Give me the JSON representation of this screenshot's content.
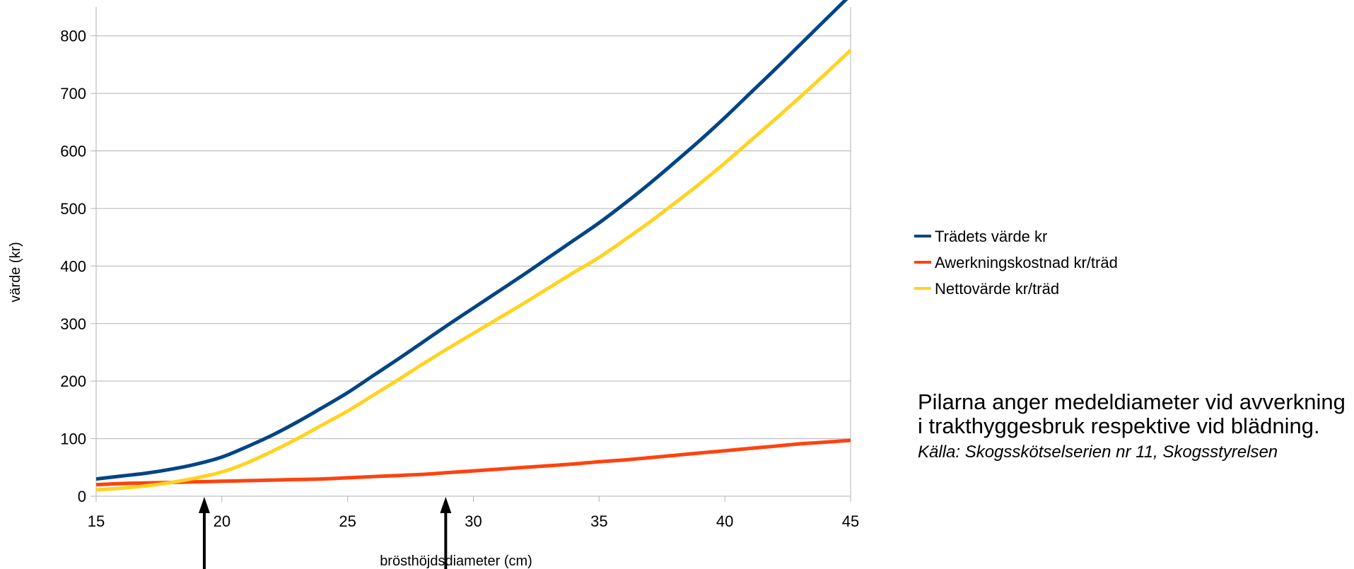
{
  "chart_data": {
    "type": "line",
    "title": "",
    "xlabel": "brösthöjdsdiameter (cm)",
    "ylabel": "värde (kr)",
    "xlim": [
      15,
      45
    ],
    "ylim": [
      0,
      850
    ],
    "x_ticks": [
      "15",
      "20",
      "25",
      "30",
      "35",
      "40",
      "45"
    ],
    "y_ticks": [
      "0",
      "100",
      "200",
      "300",
      "400",
      "500",
      "600",
      "700",
      "800"
    ],
    "grid": "horizontal",
    "legend_position": "right",
    "x": [
      15,
      16,
      17,
      18,
      19,
      20,
      21,
      22,
      23,
      24,
      25,
      26,
      27,
      28,
      29,
      30,
      31,
      32,
      33,
      34,
      35,
      36,
      37,
      38,
      39,
      40,
      41,
      42,
      43,
      44,
      45
    ],
    "series": [
      {
        "name": "Trädets värde kr",
        "color": "#004586",
        "values": [
          30,
          35,
          40,
          47,
          56,
          68,
          86,
          106,
          129,
          154,
          180,
          209,
          238,
          268,
          298,
          327,
          356,
          385,
          415,
          445,
          475,
          508,
          543,
          580,
          618,
          658,
          700,
          742,
          785,
          828,
          871
        ]
      },
      {
        "name": "Awerkningskostnad kr/träd",
        "color": "#ff420e",
        "values": [
          20,
          22,
          23,
          24,
          25,
          26,
          27,
          28,
          29,
          30,
          32,
          34,
          36,
          38,
          41,
          44,
          47,
          50,
          53,
          56,
          60,
          63,
          67,
          71,
          75,
          79,
          83,
          87,
          91,
          94,
          97
        ]
      },
      {
        "name": "Nettovärde kr/träd",
        "color": "#ffd320",
        "values": [
          11,
          14,
          18,
          24,
          32,
          42,
          58,
          78,
          100,
          124,
          148,
          175,
          202,
          230,
          257,
          283,
          309,
          335,
          362,
          389,
          415,
          445,
          476,
          509,
          543,
          579,
          617,
          655,
          694,
          734,
          775
        ]
      }
    ],
    "annotations": [
      {
        "type": "arrow",
        "x": 19.3,
        "meaning": "medeldiameter vid avverkning i trakthyggesbruk"
      },
      {
        "type": "arrow",
        "x": 28.9,
        "meaning": "medeldiameter vid blädning"
      }
    ]
  },
  "note": {
    "text": "Pilarna anger medeldiameter vid avverkning i trakthyggesbruk respektive vid blädning.",
    "source": "Källa: Skogsskötselserien nr 11, Skogsstyrelsen"
  }
}
